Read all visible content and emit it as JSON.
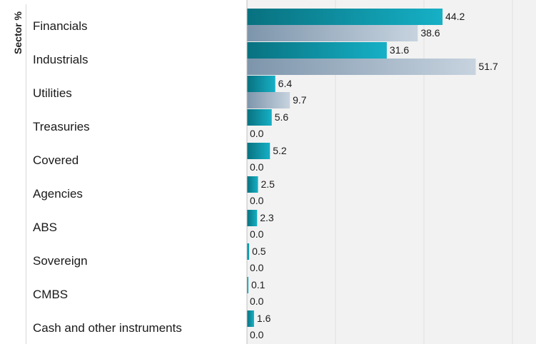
{
  "chart_data": {
    "type": "bar",
    "orientation": "horizontal",
    "axis_title": "Sector %",
    "categories": [
      "Financials",
      "Industrials",
      "Utilities",
      "Treasuries",
      "Covered",
      "Agencies",
      "ABS",
      "Sovereign",
      "CMBS",
      "Cash and other instruments"
    ],
    "series": [
      {
        "values": [
          44.2,
          31.6,
          6.4,
          5.6,
          5.2,
          2.5,
          2.3,
          0.5,
          0.1,
          1.6
        ],
        "color": "#0a8fa0"
      },
      {
        "values": [
          38.6,
          51.7,
          9.7,
          0.0,
          0.0,
          0.0,
          0.0,
          0.0,
          0.0,
          0.0
        ],
        "color": "#9fb2c6"
      }
    ],
    "xlim": [
      0,
      60
    ],
    "grid": true,
    "background_color": "#f2f2f2",
    "gridline_color": "#e0e0e0"
  }
}
